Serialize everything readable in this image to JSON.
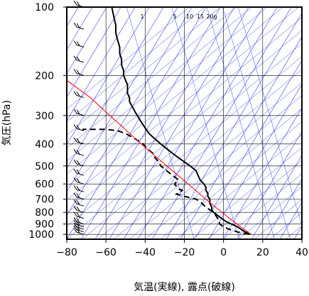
{
  "chart_data": {
    "type": "line",
    "title": "",
    "xlabel": "気温(実線), 露点(破線)",
    "ylabel": "気圧(hPa)",
    "x_scale": "linear",
    "y_scale": "log",
    "y_inverted": true,
    "xlim": [
      -80,
      40
    ],
    "ylim": [
      1050,
      100
    ],
    "x_ticks": [
      "−80",
      "−60",
      "−40",
      "−20",
      "0",
      "20",
      "40"
    ],
    "x_tick_values": [
      -80,
      -60,
      -40,
      -20,
      0,
      20,
      40
    ],
    "y_ticks": [
      "100",
      "200",
      "300",
      "400",
      "500",
      "600",
      "700",
      "800",
      "900",
      "1000"
    ],
    "y_tick_values": [
      100,
      200,
      300,
      400,
      500,
      600,
      700,
      800,
      900,
      1000
    ],
    "grid": true,
    "mixing_ratio_labels": [
      "1",
      "5",
      "10",
      "15",
      "20g"
    ],
    "mixing_ratio_values": [
      1,
      5,
      10,
      15,
      20
    ],
    "series": [
      {
        "style": "solid",
        "color": "#000000",
        "points": [
          [
            1000,
            14
          ],
          [
            975,
            11
          ],
          [
            950,
            9
          ],
          [
            925,
            7
          ],
          [
            900,
            4
          ],
          [
            875,
            1
          ],
          [
            850,
            -1
          ],
          [
            825,
            -3
          ],
          [
            800,
            -5
          ],
          [
            780,
            -6
          ],
          [
            760,
            -6
          ],
          [
            730,
            -7
          ],
          [
            700,
            -7
          ],
          [
            680,
            -8
          ],
          [
            660,
            -8
          ],
          [
            640,
            -9
          ],
          [
            620,
            -9
          ],
          [
            600,
            -10
          ],
          [
            575,
            -12
          ],
          [
            550,
            -13
          ],
          [
            525,
            -14
          ],
          [
            500,
            -17
          ],
          [
            480,
            -20
          ],
          [
            460,
            -23
          ],
          [
            440,
            -26
          ],
          [
            420,
            -29
          ],
          [
            400,
            -32
          ],
          [
            380,
            -35
          ],
          [
            360,
            -38
          ],
          [
            340,
            -40
          ],
          [
            320,
            -42
          ],
          [
            300,
            -44
          ],
          [
            290,
            -45
          ],
          [
            280,
            -46
          ],
          [
            270,
            -47
          ],
          [
            260,
            -48
          ],
          [
            250,
            -48
          ],
          [
            240,
            -49
          ],
          [
            230,
            -49
          ],
          [
            220,
            -49
          ],
          [
            210,
            -50
          ],
          [
            200,
            -51
          ],
          [
            190,
            -51
          ],
          [
            180,
            -52
          ],
          [
            170,
            -52
          ],
          [
            160,
            -53
          ],
          [
            150,
            -53
          ],
          [
            140,
            -54
          ],
          [
            130,
            -55
          ],
          [
            120,
            -55
          ],
          [
            110,
            -56
          ],
          [
            100,
            -57
          ]
        ]
      },
      {
        "style": "dashed",
        "color": "#000000",
        "points": [
          [
            1000,
            13
          ],
          [
            975,
            7
          ],
          [
            950,
            3
          ],
          [
            925,
            0
          ],
          [
            900,
            -2
          ],
          [
            875,
            -2
          ],
          [
            850,
            -3
          ],
          [
            825,
            -4
          ],
          [
            800,
            -5
          ],
          [
            780,
            -7
          ],
          [
            760,
            -9
          ],
          [
            730,
            -11
          ],
          [
            700,
            -14
          ],
          [
            690,
            -17
          ],
          [
            680,
            -20
          ],
          [
            665,
            -24
          ],
          [
            650,
            -22
          ],
          [
            640,
            -21
          ],
          [
            630,
            -23
          ],
          [
            615,
            -24
          ],
          [
            600,
            -25
          ],
          [
            575,
            -23
          ],
          [
            550,
            -26
          ],
          [
            525,
            -29
          ],
          [
            500,
            -32
          ],
          [
            480,
            -33
          ],
          [
            460,
            -35
          ],
          [
            440,
            -36
          ],
          [
            420,
            -39
          ],
          [
            400,
            -41
          ],
          [
            380,
            -45
          ],
          [
            360,
            -50
          ],
          [
            350,
            -54
          ],
          [
            345,
            -60
          ],
          [
            345,
            -72
          ]
        ]
      },
      {
        "style": "solid",
        "color": "#ff0000",
        "points": [
          [
            1000,
            14
          ],
          [
            850,
            3
          ],
          [
            700,
            -9
          ],
          [
            600,
            -18
          ],
          [
            500,
            -29
          ],
          [
            400,
            -42
          ],
          [
            300,
            -58
          ],
          [
            250,
            -68
          ],
          [
            210,
            -80
          ]
        ]
      }
    ],
    "wind_barb_pressures": [
      1000,
      975,
      950,
      925,
      900,
      850,
      800,
      750,
      700,
      650,
      600,
      550,
      500,
      450,
      400,
      350,
      300,
      250,
      200,
      175,
      150,
      125,
      100
    ]
  }
}
